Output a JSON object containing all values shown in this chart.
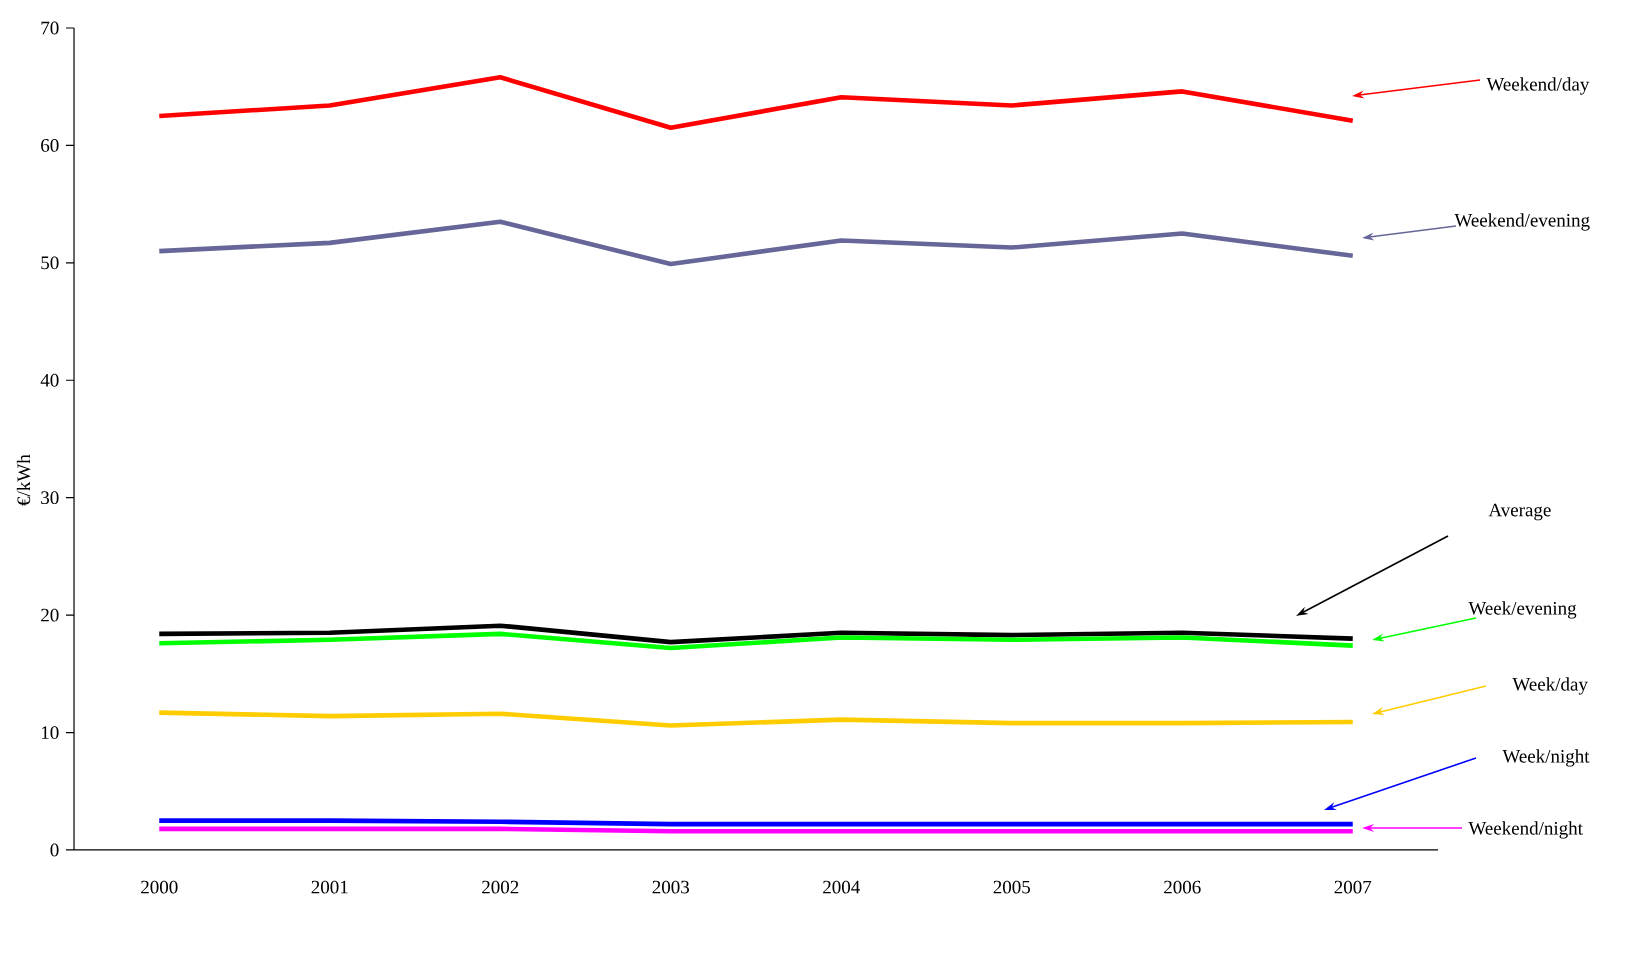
{
  "chart_data": {
    "type": "line",
    "ylabel": "€/kWh",
    "categories": [
      "2000",
      "2001",
      "2002",
      "2003",
      "2004",
      "2005",
      "2006",
      "2007"
    ],
    "ylim": [
      0,
      70
    ],
    "yticks": [
      0,
      10,
      20,
      30,
      40,
      50,
      60,
      70
    ],
    "grid": false,
    "legend": "right",
    "marker": "none",
    "line_style": "solid",
    "series": [
      {
        "name": "Weekend/day",
        "color": "#ff0000",
        "values": [
          62.5,
          63.4,
          65.8,
          61.5,
          64.1,
          63.4,
          64.6,
          62.1
        ]
      },
      {
        "name": "Weekend/evening",
        "color": "#666699",
        "values": [
          51.0,
          51.7,
          53.5,
          49.9,
          51.9,
          51.3,
          52.5,
          50.6
        ]
      },
      {
        "name": "Average",
        "color": "#000000",
        "values": [
          18.4,
          18.5,
          19.1,
          17.7,
          18.5,
          18.3,
          18.5,
          18.0
        ]
      },
      {
        "name": "Week/evening",
        "color": "#00ff00",
        "values": [
          17.6,
          17.9,
          18.4,
          17.2,
          18.1,
          17.9,
          18.1,
          17.4
        ]
      },
      {
        "name": "Week/day",
        "color": "#ffcc00",
        "values": [
          11.7,
          11.4,
          11.6,
          10.6,
          11.1,
          10.8,
          10.8,
          10.9
        ]
      },
      {
        "name": "Week/night",
        "color": "#0000ff",
        "values": [
          2.5,
          2.5,
          2.4,
          2.2,
          2.2,
          2.2,
          2.2,
          2.2
        ]
      },
      {
        "name": "Weekend/night",
        "color": "#ff00ff",
        "values": [
          1.8,
          1.8,
          1.8,
          1.6,
          1.6,
          1.6,
          1.6,
          1.6
        ]
      }
    ]
  }
}
